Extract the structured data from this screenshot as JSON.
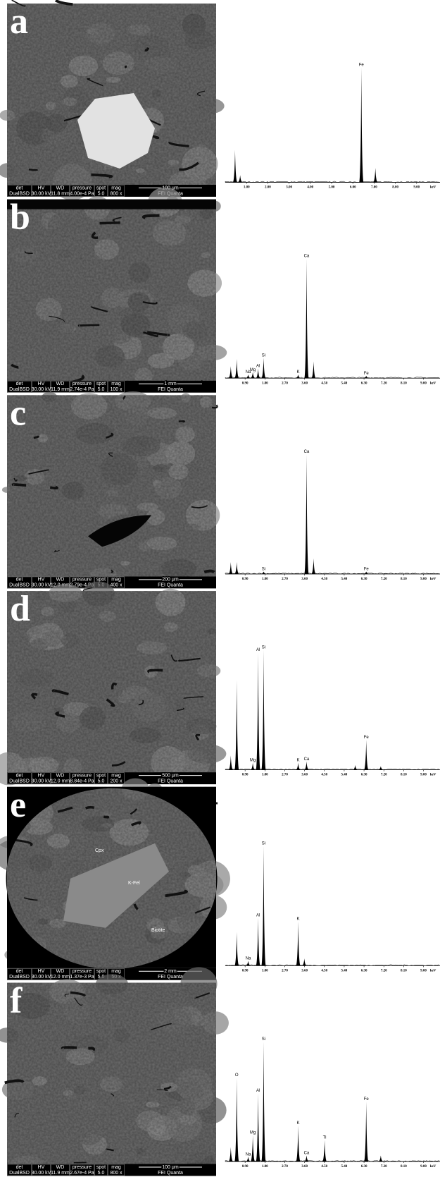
{
  "info_headers": {
    "det": "det",
    "hv": "HV",
    "wd": "WD",
    "pressure": "pressure",
    "spot": "spot",
    "mag": "mag"
  },
  "detector": "DualBSD",
  "instrument": "FEI Quanta",
  "panels": [
    {
      "label": "a",
      "sem": {
        "hv": "30.00 kV",
        "wd": "11.8 mm",
        "pressure": "4.00e-4 Pa",
        "spot": "5.0",
        "mag": "800 x",
        "scale_bar": "100 μm"
      },
      "spectrum": {
        "xlim": [
          0,
          10.1
        ],
        "x_unit": "keV",
        "xticks": [
          {
            "value": 1,
            "label": "1.00"
          },
          {
            "value": 2,
            "label": "2.00"
          },
          {
            "value": 3,
            "label": "3.00"
          },
          {
            "value": 4,
            "label": "4.00"
          },
          {
            "value": 5,
            "label": "5.00"
          },
          {
            "value": 6,
            "label": "6.00"
          },
          {
            "value": 7,
            "label": "7.00"
          },
          {
            "value": 8,
            "label": "8.00"
          },
          {
            "value": 9,
            "label": "9.00"
          }
        ],
        "peaks": [
          {
            "x": 0.46,
            "height": 27
          },
          {
            "x": 0.7,
            "height": 6
          },
          {
            "x": 6.4,
            "height": 96,
            "label": "Fe"
          },
          {
            "x": 7.06,
            "height": 12
          }
        ]
      }
    },
    {
      "label": "b",
      "sem": {
        "hv": "30.00 kV",
        "wd": "11.9 mm",
        "pressure": "2.74e-4 Pa",
        "spot": "5.0",
        "mag": "100 x",
        "scale_bar": "1 mm"
      },
      "spectrum": {
        "xlim": [
          0,
          9.75
        ],
        "x_unit": "keV",
        "xticks": [
          {
            "value": 0.9,
            "label": "0.90"
          },
          {
            "value": 1.8,
            "label": "1.80"
          },
          {
            "value": 2.7,
            "label": "2.70"
          },
          {
            "value": 3.6,
            "label": "3.60"
          },
          {
            "value": 4.5,
            "label": "4.50"
          },
          {
            "value": 5.4,
            "label": "5.40"
          },
          {
            "value": 6.3,
            "label": "6.30"
          },
          {
            "value": 7.2,
            "label": "7.20"
          },
          {
            "value": 8.1,
            "label": "8.10"
          },
          {
            "value": 9,
            "label": "9.00"
          }
        ],
        "peaks": [
          {
            "x": 0.25,
            "height": 10
          },
          {
            "x": 0.52,
            "height": 16
          },
          {
            "x": 1.04,
            "height": 3,
            "label": "Na"
          },
          {
            "x": 1.25,
            "height": 5,
            "label": "Mg"
          },
          {
            "x": 1.49,
            "height": 8,
            "label": "Al"
          },
          {
            "x": 1.74,
            "height": 17,
            "label": "Si"
          },
          {
            "x": 3.31,
            "height": 3,
            "label": "K"
          },
          {
            "x": 3.69,
            "height": 100,
            "label": "Ca"
          },
          {
            "x": 4.01,
            "height": 14
          },
          {
            "x": 6.4,
            "height": 2,
            "label": "Fe"
          }
        ]
      }
    },
    {
      "label": "c",
      "sem": {
        "hv": "30.00 kV",
        "wd": "12.0 mm",
        "pressure": "2.79e-4 Pa",
        "spot": "5.0",
        "mag": "400 x",
        "scale_bar": "200 μm"
      },
      "spectrum": {
        "xlim": [
          0,
          9.75
        ],
        "x_unit": "keV",
        "xticks": [
          {
            "value": 0.9,
            "label": "0.90"
          },
          {
            "value": 1.8,
            "label": "1.80"
          },
          {
            "value": 2.7,
            "label": "2.70"
          },
          {
            "value": 3.6,
            "label": "3.60"
          },
          {
            "value": 4.5,
            "label": "4.50"
          },
          {
            "value": 5.4,
            "label": "5.40"
          },
          {
            "value": 6.3,
            "label": "6.30"
          },
          {
            "value": 7.2,
            "label": "7.20"
          },
          {
            "value": 8.1,
            "label": "8.10"
          },
          {
            "value": 9,
            "label": "9.00"
          }
        ],
        "peaks": [
          {
            "x": 0.25,
            "height": 10
          },
          {
            "x": 0.52,
            "height": 10
          },
          {
            "x": 1.74,
            "height": 2,
            "label": "Si"
          },
          {
            "x": 3.69,
            "height": 100,
            "label": "Ca"
          },
          {
            "x": 4.01,
            "height": 13
          },
          {
            "x": 6.4,
            "height": 2,
            "label": "Fe"
          }
        ]
      }
    },
    {
      "label": "d",
      "sem": {
        "hv": "30.00 kV",
        "wd": "12.0 mm",
        "pressure": "8.84e-4 Pa",
        "spot": "5.0",
        "mag": "200 x",
        "scale_bar": "500 μm"
      },
      "spectrum": {
        "xlim": [
          0,
          9.75
        ],
        "x_unit": "keV",
        "xticks": [
          {
            "value": 0.9,
            "label": "0.90"
          },
          {
            "value": 1.8,
            "label": "1.80"
          },
          {
            "value": 2.7,
            "label": "2.70"
          },
          {
            "value": 3.6,
            "label": "3.60"
          },
          {
            "value": 4.5,
            "label": "4.50"
          },
          {
            "value": 5.4,
            "label": "5.40"
          },
          {
            "value": 6.3,
            "label": "6.30"
          },
          {
            "value": 7.2,
            "label": "7.20"
          },
          {
            "value": 8.1,
            "label": "8.10"
          },
          {
            "value": 9,
            "label": "9.00"
          }
        ],
        "peaks": [
          {
            "x": 0.25,
            "height": 12
          },
          {
            "x": 0.52,
            "height": 75
          },
          {
            "x": 1.25,
            "height": 6,
            "label": "Mg"
          },
          {
            "x": 1.49,
            "height": 98,
            "label": "Al"
          },
          {
            "x": 1.74,
            "height": 100,
            "label": "Si"
          },
          {
            "x": 3.31,
            "height": 6,
            "label": "K"
          },
          {
            "x": 3.69,
            "height": 7,
            "label": "Ca"
          },
          {
            "x": 5.9,
            "height": 4
          },
          {
            "x": 6.4,
            "height": 25,
            "label": "Fe"
          },
          {
            "x": 7.06,
            "height": 3
          }
        ]
      }
    },
    {
      "label": "e",
      "sem": {
        "hv": "30.00 kV",
        "wd": "12.0 mm",
        "pressure": "1.37e-3 Pa",
        "spot": "5.0",
        "mag": "50 x",
        "scale_bar": "2 mm",
        "annotations": [
          "Cpx",
          "K-Fel",
          "Biotite"
        ]
      },
      "spectrum": {
        "xlim": [
          0,
          9.75
        ],
        "x_unit": "keV",
        "xticks": [
          {
            "value": 0.9,
            "label": "0.90"
          },
          {
            "value": 1.8,
            "label": "1.80"
          },
          {
            "value": 2.7,
            "label": "2.70"
          },
          {
            "value": 3.6,
            "label": "3.60"
          },
          {
            "value": 4.5,
            "label": "4.50"
          },
          {
            "value": 5.4,
            "label": "5.40"
          },
          {
            "value": 6.3,
            "label": "6.30"
          },
          {
            "value": 7.2,
            "label": "7.20"
          },
          {
            "value": 8.1,
            "label": "8.10"
          },
          {
            "value": 9,
            "label": "9.00"
          }
        ],
        "peaks": [
          {
            "x": 0.52,
            "height": 28
          },
          {
            "x": 1.04,
            "height": 4,
            "label": "Na"
          },
          {
            "x": 1.49,
            "height": 40,
            "label": "Al"
          },
          {
            "x": 1.74,
            "height": 100,
            "label": "Si"
          },
          {
            "x": 3.31,
            "height": 37,
            "label": "K"
          },
          {
            "x": 3.59,
            "height": 6
          }
        ]
      }
    },
    {
      "label": "f",
      "sem": {
        "hv": "30.00 kV",
        "wd": "11.9 mm",
        "pressure": "2.67e-4 Pa",
        "spot": "5.0",
        "mag": "800 x",
        "scale_bar": "100 μm"
      },
      "spectrum": {
        "xlim": [
          0,
          9.75
        ],
        "x_unit": "keV",
        "xticks": [
          {
            "value": 0.9,
            "label": "0.90"
          },
          {
            "value": 1.8,
            "label": "1.80"
          },
          {
            "value": 2.7,
            "label": "2.70"
          },
          {
            "value": 3.6,
            "label": "3.60"
          },
          {
            "value": 4.5,
            "label": "4.50"
          },
          {
            "value": 5.4,
            "label": "5.40"
          },
          {
            "value": 6.3,
            "label": "6.30"
          },
          {
            "value": 7.2,
            "label": "7.20"
          },
          {
            "value": 8.1,
            "label": "8.10"
          },
          {
            "value": 9,
            "label": "9.00"
          }
        ],
        "peaks": [
          {
            "x": 0.25,
            "height": 12
          },
          {
            "x": 0.52,
            "height": 70,
            "label": "O"
          },
          {
            "x": 1.04,
            "height": 4,
            "label": "Na"
          },
          {
            "x": 1.25,
            "height": 22,
            "label": "Mg"
          },
          {
            "x": 1.49,
            "height": 57,
            "label": "Al"
          },
          {
            "x": 1.74,
            "height": 100,
            "label": "Si"
          },
          {
            "x": 3.31,
            "height": 30,
            "label": "K"
          },
          {
            "x": 3.69,
            "height": 5,
            "label": "Ca"
          },
          {
            "x": 4.51,
            "height": 18,
            "label": "Ti"
          },
          {
            "x": 6.4,
            "height": 50,
            "label": "Fe"
          },
          {
            "x": 7.06,
            "height": 5
          }
        ]
      }
    }
  ]
}
